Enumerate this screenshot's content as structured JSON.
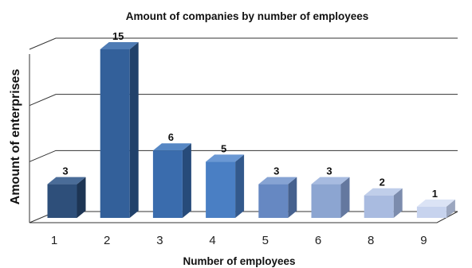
{
  "chart_data": {
    "type": "bar",
    "title": "Amount of companies by  number of employees",
    "xlabel": "Number of employees",
    "ylabel": "Amount of enterprises",
    "categories": [
      "1",
      "2",
      "3",
      "4",
      "5",
      "6",
      "8",
      "9"
    ],
    "values": [
      3,
      15,
      6,
      5,
      3,
      3,
      2,
      1
    ],
    "data_labels": [
      "3",
      "15",
      "6",
      "5",
      "3",
      "3",
      "2",
      "1"
    ],
    "ylim": [
      0,
      15
    ],
    "grid": true,
    "legend": "none",
    "style": "3d-column",
    "colors": {
      "front": [
        "#2e4f7a",
        "#33609a",
        "#3a6cad",
        "#4a7fc4",
        "#6688c2",
        "#8ca5d1",
        "#a9bbe0",
        "#c7d3ee"
      ],
      "side": [
        "#1d3554",
        "#21416a",
        "#274b7a",
        "#33598c",
        "#46618e",
        "#64789f",
        "#7c8cad",
        "#9ba6bf"
      ],
      "top": [
        "#4a6c98",
        "#4f7cb5",
        "#5687c4",
        "#6a98d4",
        "#86a3d3",
        "#a7bbe0",
        "#c0ceea",
        "#dbe3f5"
      ],
      "grid": "#333333"
    }
  }
}
